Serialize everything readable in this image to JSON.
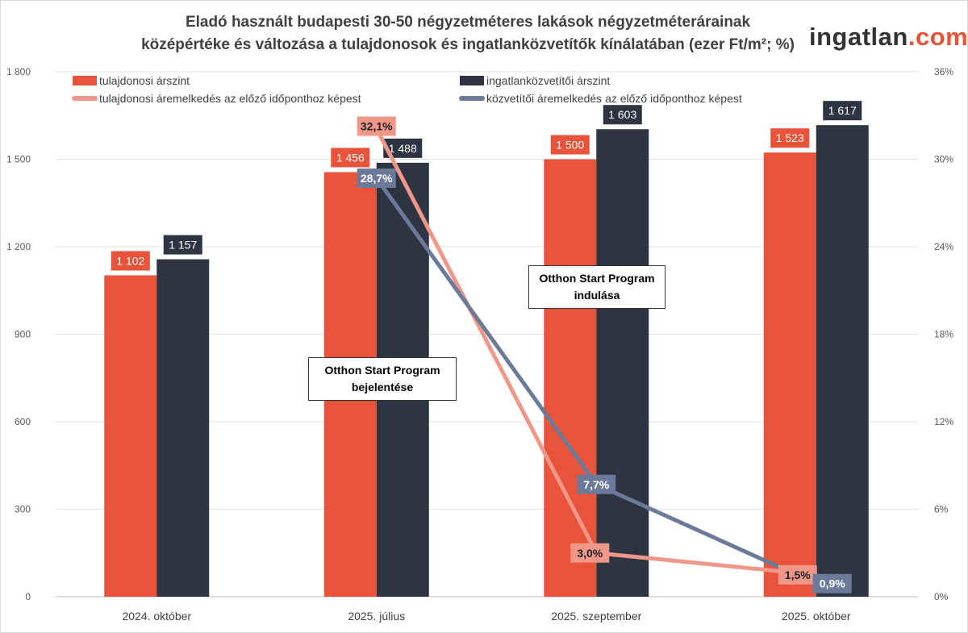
{
  "title_lines": [
    "Eladó használt budapesti 30-50 négyzetméteres lakások négyzetméterárainak",
    "középértéke és változása a tulajdonosok és ingatlanközvetítők kínálatában (ezer Ft/m²; %)"
  ],
  "logo": {
    "text_main": "ingatlan",
    "text_accent": ".com"
  },
  "chart_data": {
    "type": "bar+line",
    "title": "Eladó használt budapesti 30-50 négyzetméteres lakások négyzetméterárainak középértéke és változása a tulajdonosok és ingatlanközvetítők kínálatában (ezer Ft/m²; %)",
    "categories": [
      "2024. október",
      "2025. július",
      "2025. szeptember",
      "2025. október"
    ],
    "y_left": {
      "range": [
        0,
        1800
      ],
      "ticks": [
        0,
        300,
        600,
        900,
        1200,
        1500,
        1800
      ],
      "tick_labels": [
        "0",
        "300",
        "600",
        "900",
        "1 200",
        "1 500",
        "1 800"
      ]
    },
    "y_right": {
      "range": [
        0,
        36
      ],
      "ticks": [
        0,
        6,
        12,
        18,
        24,
        30,
        36
      ],
      "tick_labels": [
        "0%",
        "6%",
        "12%",
        "18%",
        "24%",
        "30%",
        "36%"
      ]
    },
    "grid": true,
    "legend_position": "top",
    "bar_series": [
      {
        "name": "tulajdonosi árszint",
        "color": "#E8533A",
        "values": [
          1102,
          1456,
          1500,
          1523
        ],
        "labels": [
          "1 102",
          "1 456",
          "1 500",
          "1 523"
        ]
      },
      {
        "name": "ingatlanközvetítői árszint",
        "color": "#2E3442",
        "values": [
          1157,
          1488,
          1603,
          1617
        ],
        "labels": [
          "1 157",
          "1 488",
          "1 603",
          "1 617"
        ]
      }
    ],
    "line_series": [
      {
        "name": "tulajdonosi áremelkedés az előző időponthoz képest",
        "color": "#F0978A",
        "values": [
          null,
          32.1,
          3.0,
          1.5
        ],
        "labels": [
          "",
          "32,1%",
          "3,0%",
          "1,5%"
        ]
      },
      {
        "name": "közvetítői áremelkedés az előző időponthoz képest",
        "color": "#6B7A99",
        "values": [
          null,
          28.7,
          7.7,
          0.9
        ],
        "labels": [
          "",
          "28,7%",
          "7,7%",
          "0,9%"
        ]
      }
    ],
    "annotations": [
      {
        "lines": [
          "Otthon Start Program",
          "bejelentése"
        ]
      },
      {
        "lines": [
          "Otthon Start Program",
          "indulása"
        ]
      }
    ]
  }
}
